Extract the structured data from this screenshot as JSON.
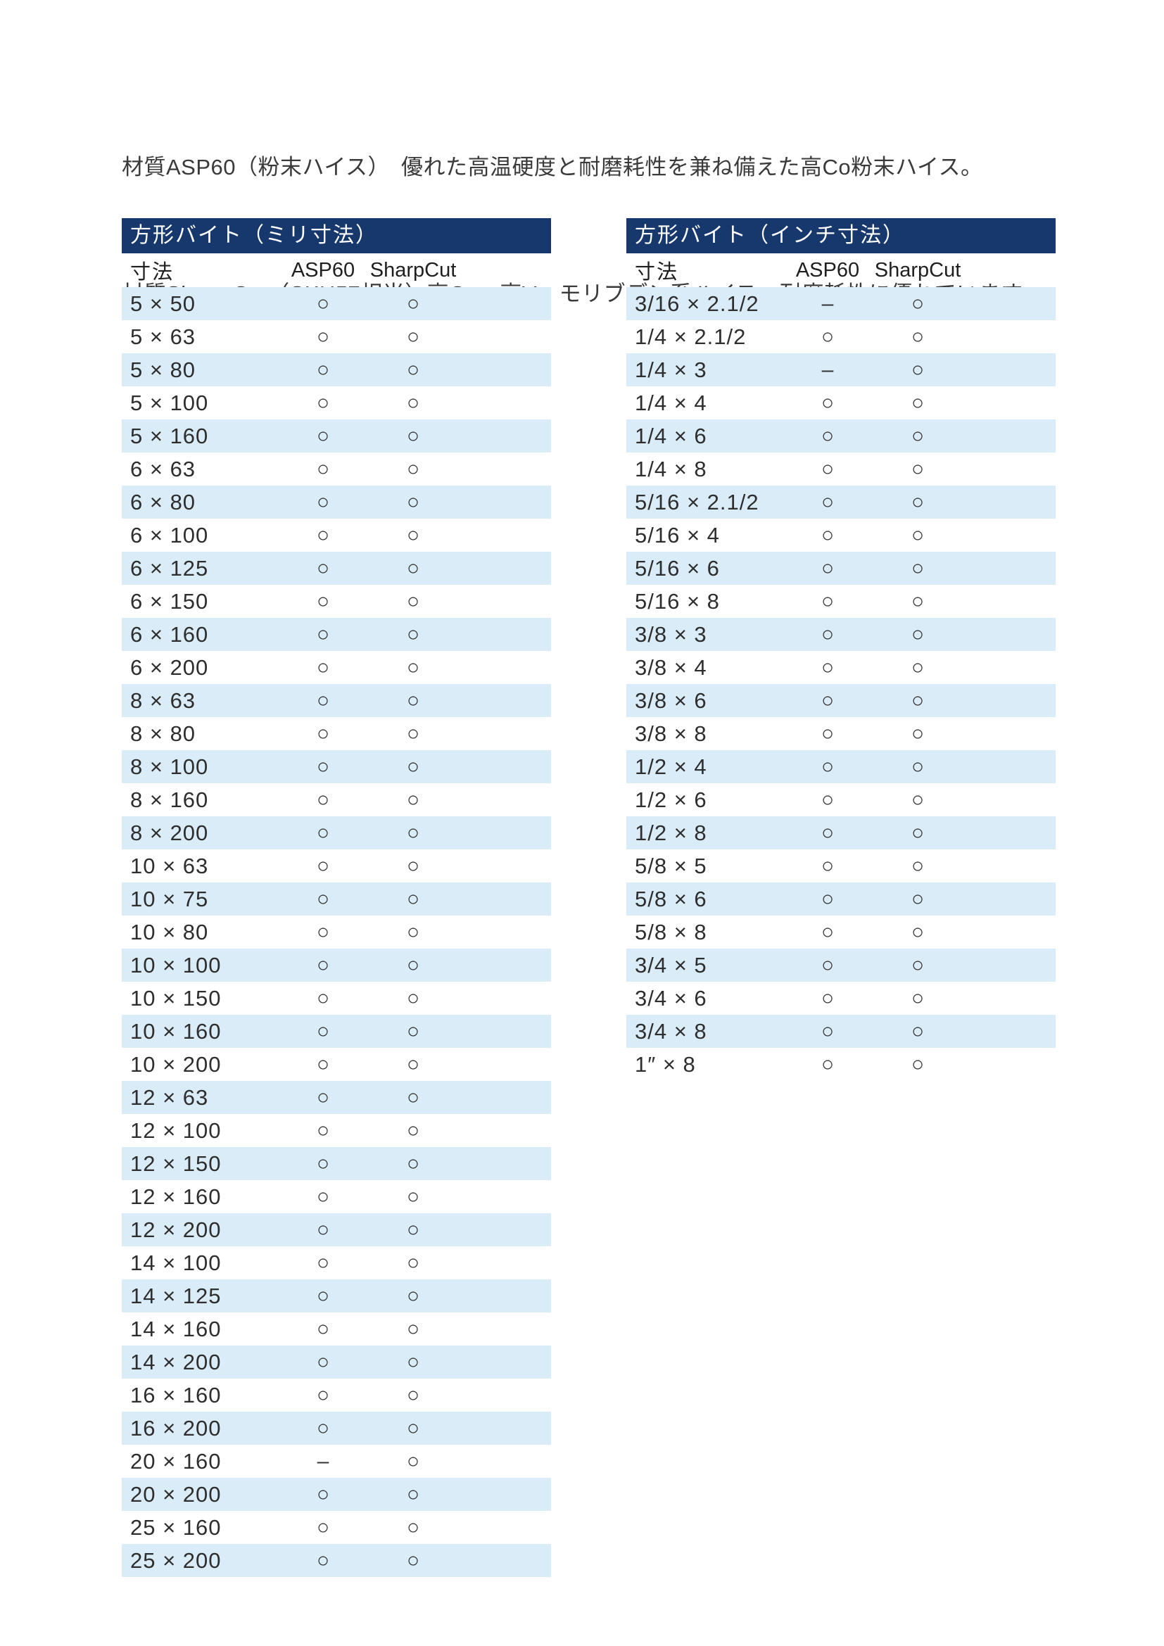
{
  "intro": {
    "line1": "材質ASP60（粉末ハイス）　優れた高温硬度と耐磨耗性を兼ね備えた高Co粉末ハイス。",
    "line2": "材質Sharp Cut（SKH57相当）高Co、高V、モリブデン系ハイス。耐磨耗性に優れています。"
  },
  "colors": {
    "title_bar_bg": "#17386c",
    "title_bar_text": "#ffffff",
    "row_stripe": "#d9ecf8",
    "body_text": "#2e2e2e",
    "mark_color": "#333333"
  },
  "marks": {
    "available": "○",
    "not_available": "–"
  },
  "tables": [
    {
      "title": "方形バイト（ミリ寸法）",
      "columns": [
        "寸法",
        "ASP60",
        "SharpCut"
      ],
      "rows": [
        {
          "size": "5 × 50",
          "asp60": "○",
          "sharpcut": "○"
        },
        {
          "size": "5 × 63",
          "asp60": "○",
          "sharpcut": "○"
        },
        {
          "size": "5 × 80",
          "asp60": "○",
          "sharpcut": "○"
        },
        {
          "size": "5 × 100",
          "asp60": "○",
          "sharpcut": "○"
        },
        {
          "size": "5 × 160",
          "asp60": "○",
          "sharpcut": "○"
        },
        {
          "size": "6 × 63",
          "asp60": "○",
          "sharpcut": "○"
        },
        {
          "size": "6 × 80",
          "asp60": "○",
          "sharpcut": "○"
        },
        {
          "size": "6 × 100",
          "asp60": "○",
          "sharpcut": "○"
        },
        {
          "size": "6 × 125",
          "asp60": "○",
          "sharpcut": "○"
        },
        {
          "size": "6 × 150",
          "asp60": "○",
          "sharpcut": "○"
        },
        {
          "size": "6 × 160",
          "asp60": "○",
          "sharpcut": "○"
        },
        {
          "size": "6 × 200",
          "asp60": "○",
          "sharpcut": "○"
        },
        {
          "size": "8 × 63",
          "asp60": "○",
          "sharpcut": "○"
        },
        {
          "size": "8 × 80",
          "asp60": "○",
          "sharpcut": "○"
        },
        {
          "size": "8 × 100",
          "asp60": "○",
          "sharpcut": "○"
        },
        {
          "size": "8 × 160",
          "asp60": "○",
          "sharpcut": "○"
        },
        {
          "size": "8 × 200",
          "asp60": "○",
          "sharpcut": "○"
        },
        {
          "size": "10 × 63",
          "asp60": "○",
          "sharpcut": "○"
        },
        {
          "size": "10 × 75",
          "asp60": "○",
          "sharpcut": "○"
        },
        {
          "size": "10 × 80",
          "asp60": "○",
          "sharpcut": "○"
        },
        {
          "size": "10 × 100",
          "asp60": "○",
          "sharpcut": "○"
        },
        {
          "size": "10 × 150",
          "asp60": "○",
          "sharpcut": "○"
        },
        {
          "size": "10 × 160",
          "asp60": "○",
          "sharpcut": "○"
        },
        {
          "size": "10 × 200",
          "asp60": "○",
          "sharpcut": "○"
        },
        {
          "size": "12 × 63",
          "asp60": "○",
          "sharpcut": "○"
        },
        {
          "size": "12 × 100",
          "asp60": "○",
          "sharpcut": "○"
        },
        {
          "size": "12 × 150",
          "asp60": "○",
          "sharpcut": "○"
        },
        {
          "size": "12 × 160",
          "asp60": "○",
          "sharpcut": "○"
        },
        {
          "size": "12 × 200",
          "asp60": "○",
          "sharpcut": "○"
        },
        {
          "size": "14 × 100",
          "asp60": "○",
          "sharpcut": "○"
        },
        {
          "size": "14 × 125",
          "asp60": "○",
          "sharpcut": "○"
        },
        {
          "size": "14 × 160",
          "asp60": "○",
          "sharpcut": "○"
        },
        {
          "size": "14 × 200",
          "asp60": "○",
          "sharpcut": "○"
        },
        {
          "size": "16 × 160",
          "asp60": "○",
          "sharpcut": "○"
        },
        {
          "size": "16 × 200",
          "asp60": "○",
          "sharpcut": "○"
        },
        {
          "size": "20 × 160",
          "asp60": "–",
          "sharpcut": "○"
        },
        {
          "size": "20 × 200",
          "asp60": "○",
          "sharpcut": "○"
        },
        {
          "size": "25 × 160",
          "asp60": "○",
          "sharpcut": "○"
        },
        {
          "size": "25 × 200",
          "asp60": "○",
          "sharpcut": "○"
        }
      ]
    },
    {
      "title": "方形バイト（インチ寸法）",
      "columns": [
        "寸法",
        "ASP60",
        "SharpCut"
      ],
      "rows": [
        {
          "size": "3/16 × 2.1/2",
          "asp60": "–",
          "sharpcut": "○"
        },
        {
          "size": "1/4 × 2.1/2",
          "asp60": "○",
          "sharpcut": "○"
        },
        {
          "size": "1/4 × 3",
          "asp60": "–",
          "sharpcut": "○"
        },
        {
          "size": "1/4 × 4",
          "asp60": "○",
          "sharpcut": "○"
        },
        {
          "size": "1/4 × 6",
          "asp60": "○",
          "sharpcut": "○"
        },
        {
          "size": "1/4 × 8",
          "asp60": "○",
          "sharpcut": "○"
        },
        {
          "size": "5/16 × 2.1/2",
          "asp60": "○",
          "sharpcut": "○"
        },
        {
          "size": "5/16 × 4",
          "asp60": "○",
          "sharpcut": "○"
        },
        {
          "size": "5/16 × 6",
          "asp60": "○",
          "sharpcut": "○"
        },
        {
          "size": "5/16 × 8",
          "asp60": "○",
          "sharpcut": "○"
        },
        {
          "size": "3/8 × 3",
          "asp60": "○",
          "sharpcut": "○"
        },
        {
          "size": "3/8 × 4",
          "asp60": "○",
          "sharpcut": "○"
        },
        {
          "size": "3/8 × 6",
          "asp60": "○",
          "sharpcut": "○"
        },
        {
          "size": "3/8 × 8",
          "asp60": "○",
          "sharpcut": "○"
        },
        {
          "size": "1/2 × 4",
          "asp60": "○",
          "sharpcut": "○"
        },
        {
          "size": "1/2 × 6",
          "asp60": "○",
          "sharpcut": "○"
        },
        {
          "size": "1/2 × 8",
          "asp60": "○",
          "sharpcut": "○"
        },
        {
          "size": "5/8 × 5",
          "asp60": "○",
          "sharpcut": "○"
        },
        {
          "size": "5/8 × 6",
          "asp60": "○",
          "sharpcut": "○"
        },
        {
          "size": "5/8 × 8",
          "asp60": "○",
          "sharpcut": "○"
        },
        {
          "size": "3/4 × 5",
          "asp60": "○",
          "sharpcut": "○"
        },
        {
          "size": "3/4 × 6",
          "asp60": "○",
          "sharpcut": "○"
        },
        {
          "size": "3/4 × 8",
          "asp60": "○",
          "sharpcut": "○"
        },
        {
          "size": "1″ × 8",
          "asp60": "○",
          "sharpcut": "○"
        }
      ]
    }
  ]
}
